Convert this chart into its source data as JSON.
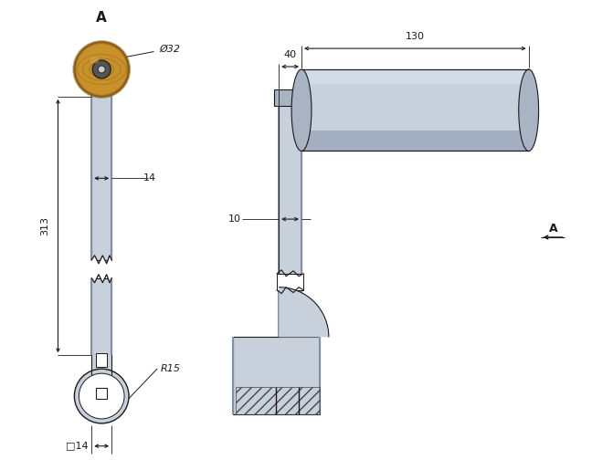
{
  "bg_color": "#ffffff",
  "line_color": "#1a1a1a",
  "part_color_light": "#c8d0dc",
  "part_color_dark": "#8090a8",
  "part_color_mid": "#a8b4c4",
  "part_color_edge": "#6878901",
  "wood_color_outer": "#8b5e1a",
  "wood_color_inner": "#c8912a",
  "wood_color_light": "#daa84a",
  "dim_color": "#1a1a1a",
  "title_A": "A",
  "section_A": "A",
  "dim_32": "Ø32",
  "dim_313": "313",
  "dim_14": "14",
  "dim_R15": "R15",
  "dim_sq14": "□14",
  "dim_130": "130",
  "dim_40": "40",
  "dim_10": "10",
  "figsize": [
    6.71,
    5.15
  ],
  "dpi": 100
}
